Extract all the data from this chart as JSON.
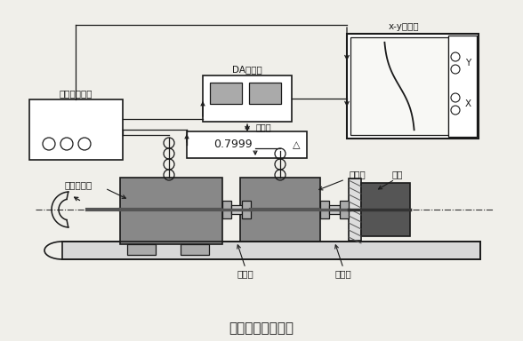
{
  "bg_color": "#f0efea",
  "line_color": "#1a1a1a",
  "white": "#ffffff",
  "title": "感应计、编码器法",
  "label_amplifier": "感应计放大器",
  "label_torque_sensor": "转矩传感器",
  "label_da": "DA转换器",
  "label_counter": "计数器",
  "label_display": "0.7999",
  "label_encoder": "编码器",
  "label_motor": "电机",
  "label_coupler1": "连轴器",
  "label_coupler2": "连轴器",
  "label_recorder": "x-y记录仪",
  "label_y": "Y",
  "label_x": "X"
}
